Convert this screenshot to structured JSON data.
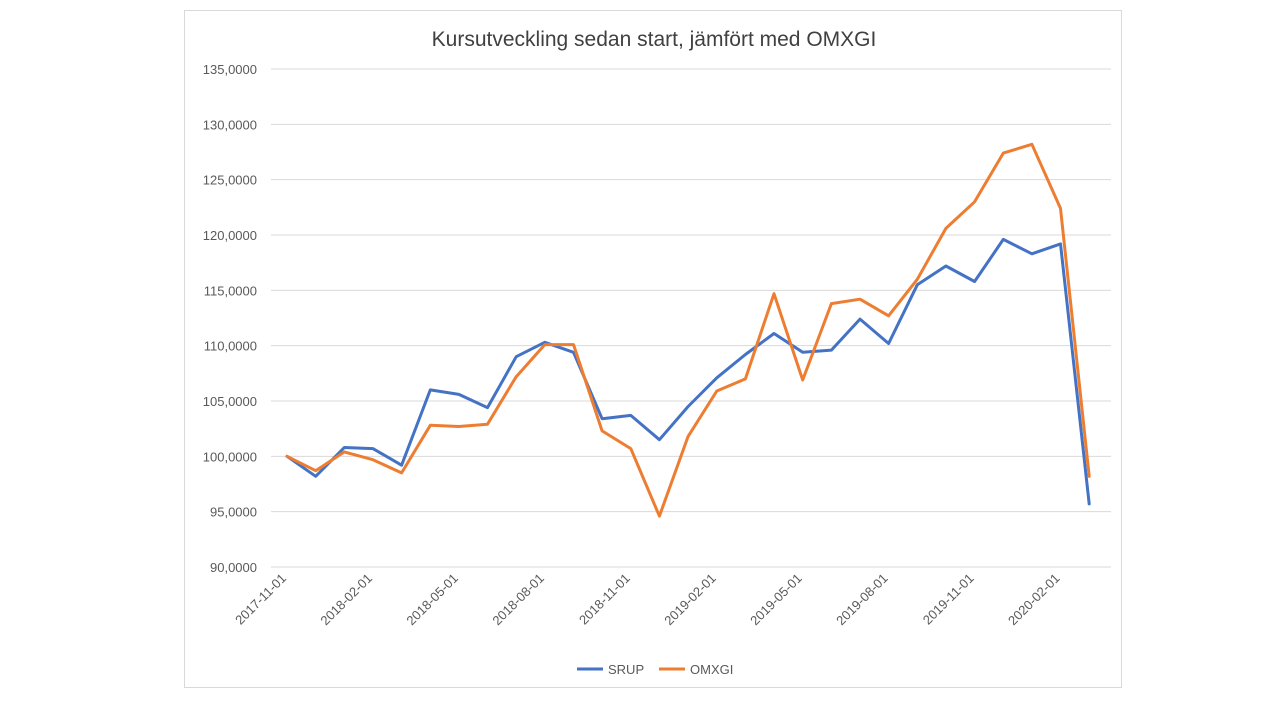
{
  "chart_data": {
    "type": "line",
    "title": "Kursutveckling sedan start, jämfört med OMXGI",
    "xlabel": "",
    "ylabel": "",
    "ylim": [
      90,
      135
    ],
    "yticks": [
      "90,0000",
      "95,0000",
      "100,0000",
      "105,0000",
      "110,0000",
      "115,0000",
      "120,0000",
      "125,0000",
      "130,0000",
      "135,0000"
    ],
    "ytick_values": [
      90,
      95,
      100,
      105,
      110,
      115,
      120,
      125,
      130,
      135
    ],
    "x": [
      "2017-11-01",
      "2017-12-01",
      "2018-01-01",
      "2018-02-01",
      "2018-03-01",
      "2018-04-01",
      "2018-05-01",
      "2018-06-01",
      "2018-07-01",
      "2018-08-01",
      "2018-09-01",
      "2018-10-01",
      "2018-11-01",
      "2018-12-01",
      "2019-01-01",
      "2019-02-01",
      "2019-03-01",
      "2019-04-01",
      "2019-05-01",
      "2019-06-01",
      "2019-07-01",
      "2019-08-01",
      "2019-09-01",
      "2019-10-01",
      "2019-11-01",
      "2019-12-01",
      "2020-01-01",
      "2020-02-01",
      "2020-03-01"
    ],
    "xtick_labels": [
      "2017-11-01",
      "2018-02-01",
      "2018-05-01",
      "2018-08-01",
      "2018-11-01",
      "2019-02-01",
      "2019-05-01",
      "2019-08-01",
      "2019-11-01",
      "2020-02-01"
    ],
    "xtick_every": 3,
    "grid": "horizontal",
    "legend_position": "bottom",
    "series": [
      {
        "name": "SRUP",
        "color": "#4472c4",
        "values": [
          100.0,
          98.2,
          100.8,
          100.7,
          99.2,
          106.0,
          105.6,
          104.4,
          109.0,
          110.3,
          109.4,
          103.4,
          103.7,
          101.5,
          104.5,
          107.1,
          109.2,
          111.1,
          109.4,
          109.6,
          112.4,
          110.2,
          115.5,
          117.2,
          115.8,
          119.6,
          118.3,
          119.2,
          95.7
        ]
      },
      {
        "name": "OMXGI",
        "color": "#ed7d31",
        "values": [
          100.0,
          98.7,
          100.4,
          99.7,
          98.5,
          102.8,
          102.7,
          102.9,
          107.2,
          110.1,
          110.1,
          102.3,
          100.7,
          94.6,
          101.8,
          105.9,
          107.0,
          114.7,
          106.9,
          113.8,
          114.2,
          112.7,
          116.0,
          120.6,
          123.0,
          127.4,
          128.2,
          122.4,
          98.2
        ]
      }
    ]
  }
}
